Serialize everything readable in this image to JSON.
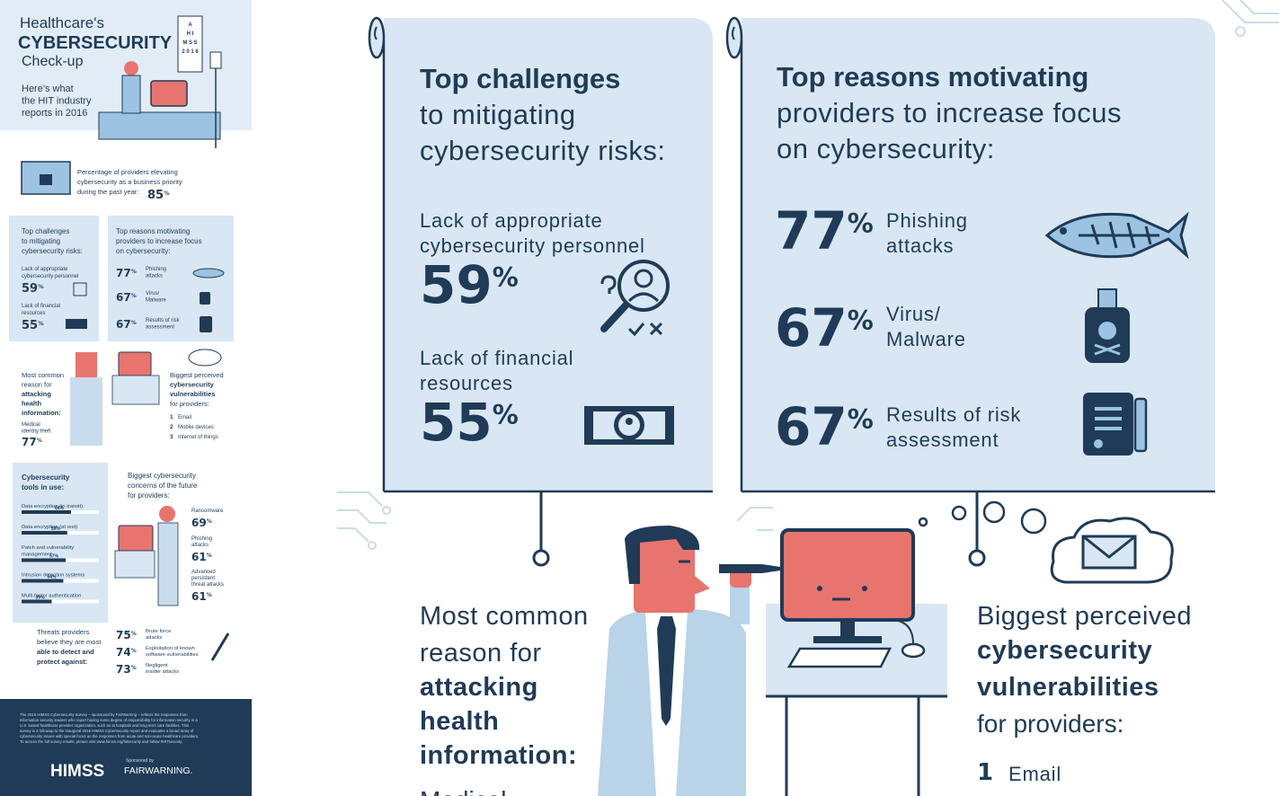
{
  "sidebar": {
    "title": [
      "Healthcare's",
      "CYBERSECURITY",
      "Check-up"
    ],
    "subtitle": [
      "Here's what",
      "the HIT industry",
      "reports in 2016"
    ],
    "eye_chart": [
      "A",
      "H I",
      "M S S",
      "2 0 1 6"
    ],
    "priority": {
      "text": [
        "Percentage of providers elevating",
        "cybersecurity as a business priority",
        "during the past year:"
      ],
      "pct": {
        "value": 85,
        "unit": "%"
      }
    },
    "challenges": {
      "title": [
        "Top challenges",
        "to mitigating",
        "cybersecurity risks:"
      ],
      "items": [
        {
          "label": [
            "Lack of appropriate",
            "cybersecurity personnel"
          ],
          "pct": {
            "value": 59,
            "unit": "%"
          }
        },
        {
          "label": [
            "Lack of financial",
            "resources"
          ],
          "pct": {
            "value": 55,
            "unit": "%"
          }
        }
      ]
    },
    "reasons": {
      "title": [
        "Top reasons motivating",
        "providers to increase focus",
        "on cybersecurity:"
      ],
      "items": [
        {
          "label": [
            "Phishing",
            "attacks"
          ],
          "pct": {
            "value": 77,
            "unit": "%"
          }
        },
        {
          "label": [
            "Virus/",
            "Malware"
          ],
          "pct": {
            "value": 67,
            "unit": "%"
          }
        },
        {
          "label": [
            "Results of risk",
            "assessment"
          ],
          "pct": {
            "value": 67,
            "unit": "%"
          }
        }
      ]
    },
    "attack_reason": {
      "title": [
        "Most common",
        "reason for"
      ],
      "title_bold": [
        "attacking",
        "health",
        "information:"
      ],
      "answer": [
        "Medical",
        "identity theft"
      ],
      "pct": {
        "value": 77,
        "unit": "%"
      }
    },
    "vulnerabilities": {
      "title": [
        "Biggest perceived"
      ],
      "title_bold": [
        "cybersecurity",
        "vulnerabilities"
      ],
      "subtitle": "for providers:",
      "items": [
        {
          "rank": "1",
          "label": "Email"
        },
        {
          "rank": "2",
          "label": "Mobile devices"
        },
        {
          "rank": "3",
          "label": "Internet of things"
        }
      ]
    },
    "tools": {
      "title": [
        "Cybersecurity",
        "tools in use:"
      ],
      "items": [
        {
          "label": [
            "Data encryption (in transit)"
          ],
          "value": 64,
          "unit": "%"
        },
        {
          "label": [
            "Data encryption (at rest)"
          ],
          "value": 59,
          "unit": "%"
        },
        {
          "label": [
            "Patch and vulnerability",
            "management"
          ],
          "value": 57,
          "unit": "%"
        },
        {
          "label": [
            "Intrusion detection systems"
          ],
          "value": 54,
          "unit": "%"
        },
        {
          "label": [
            "Multi-factor authentication"
          ],
          "value": 39,
          "unit": "%"
        }
      ]
    },
    "future": {
      "title": [
        "Biggest cybersecurity",
        "concerns of the future",
        "for providers:"
      ],
      "items": [
        {
          "label": [
            "Ransomware"
          ],
          "pct": {
            "value": 69,
            "unit": "%"
          }
        },
        {
          "label": [
            "Phishing",
            "attacks"
          ],
          "pct": {
            "value": 61,
            "unit": "%"
          }
        },
        {
          "label": [
            "Advanced",
            "persistent",
            "threat attacks"
          ],
          "pct": {
            "value": 61,
            "unit": "%"
          }
        }
      ]
    },
    "threats": {
      "title": [
        "Threats providers",
        "believe they are most"
      ],
      "title_bold": [
        "able to detect and",
        "protect against:"
      ],
      "items": [
        {
          "label": [
            "Brute force",
            "attacks"
          ],
          "pct": {
            "value": 75,
            "unit": "%"
          }
        },
        {
          "label": [
            "Exploitation of known",
            "software vulnerabilities"
          ],
          "pct": {
            "value": 74,
            "unit": "%"
          }
        },
        {
          "label": [
            "Negligent",
            "insider attacks"
          ],
          "pct": {
            "value": 73,
            "unit": "%"
          }
        }
      ]
    },
    "footer": {
      "text": [
        "The 2016 HIMSS Cybersecurity Survey – sponsored by FairWarning – reflects the responses from",
        "information security leaders who report having some degree of responsibility for information security in a",
        "U.S. based healthcare provider organization, such as at hospitals and long-term care facilities. This",
        "survey is a followup to the inaugural 2015 HIMSS Cybersecurity report and evaluates a broad array of",
        "cybersecurity issues with special focus on the responses from acute and non-acute healthcare providers.",
        "To access the full survey results, please visit www.himss.org/hitsecurity and follow #HITsecurity."
      ],
      "himss": "HIMSS",
      "sponsored": "Sponsored by",
      "sponsor": "FAIRWARNING."
    }
  },
  "main": {
    "challenges": {
      "title_bold": "Top challenges",
      "title": [
        "to mitigating",
        "cybersecurity risks:"
      ],
      "items": [
        {
          "label": [
            "Lack of appropriate",
            "cybersecurity personnel"
          ],
          "pct": {
            "value": 59,
            "unit": "%"
          }
        },
        {
          "label": [
            "Lack of financial",
            "resources"
          ],
          "pct": {
            "value": 55,
            "unit": "%"
          }
        }
      ]
    },
    "reasons": {
      "title_bold": "Top reasons motivating",
      "title": [
        "providers to increase focus",
        "on cybersecurity:"
      ],
      "items": [
        {
          "label": [
            "Phishing",
            "attacks"
          ],
          "pct": {
            "value": 77,
            "unit": "%"
          }
        },
        {
          "label": [
            "Virus/",
            "Malware"
          ],
          "pct": {
            "value": 67,
            "unit": "%"
          }
        },
        {
          "label": [
            "Results of risk",
            "assessment"
          ],
          "pct": {
            "value": 67,
            "unit": "%"
          }
        }
      ]
    },
    "attack_reason": {
      "title": [
        "Most common",
        "reason for"
      ],
      "title_bold": [
        "attacking",
        "health",
        "information:"
      ],
      "answer": "Medical"
    },
    "vulnerabilities": {
      "title": "Biggest perceived",
      "title_bold": [
        "cybersecurity",
        "vulnerabilities"
      ],
      "subtitle": "for providers:",
      "items": [
        {
          "rank": "1",
          "label": "Email"
        }
      ]
    }
  }
}
